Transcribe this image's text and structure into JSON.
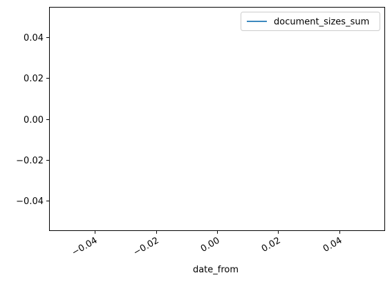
{
  "chart_data": {
    "type": "line",
    "title": "",
    "xlabel": "date_from",
    "ylabel": "",
    "xlim": [
      -0.055,
      0.055
    ],
    "ylim": [
      -0.055,
      0.055
    ],
    "x_ticks": [
      -0.04,
      -0.02,
      0.0,
      0.02,
      0.04
    ],
    "x_tick_labels": [
      "−0.04",
      "−0.02",
      "0.00",
      "0.02",
      "0.04"
    ],
    "y_ticks": [
      -0.04,
      -0.02,
      0.0,
      0.02,
      0.04
    ],
    "y_tick_labels": [
      "−0.04",
      "−0.02",
      "0.00",
      "0.02",
      "0.04"
    ],
    "x_tick_rotation_deg": 30,
    "grid": false,
    "legend_position": "top-right",
    "series": [
      {
        "name": "document_sizes_sum",
        "color": "#1f77b4",
        "x": [],
        "y": []
      }
    ]
  }
}
